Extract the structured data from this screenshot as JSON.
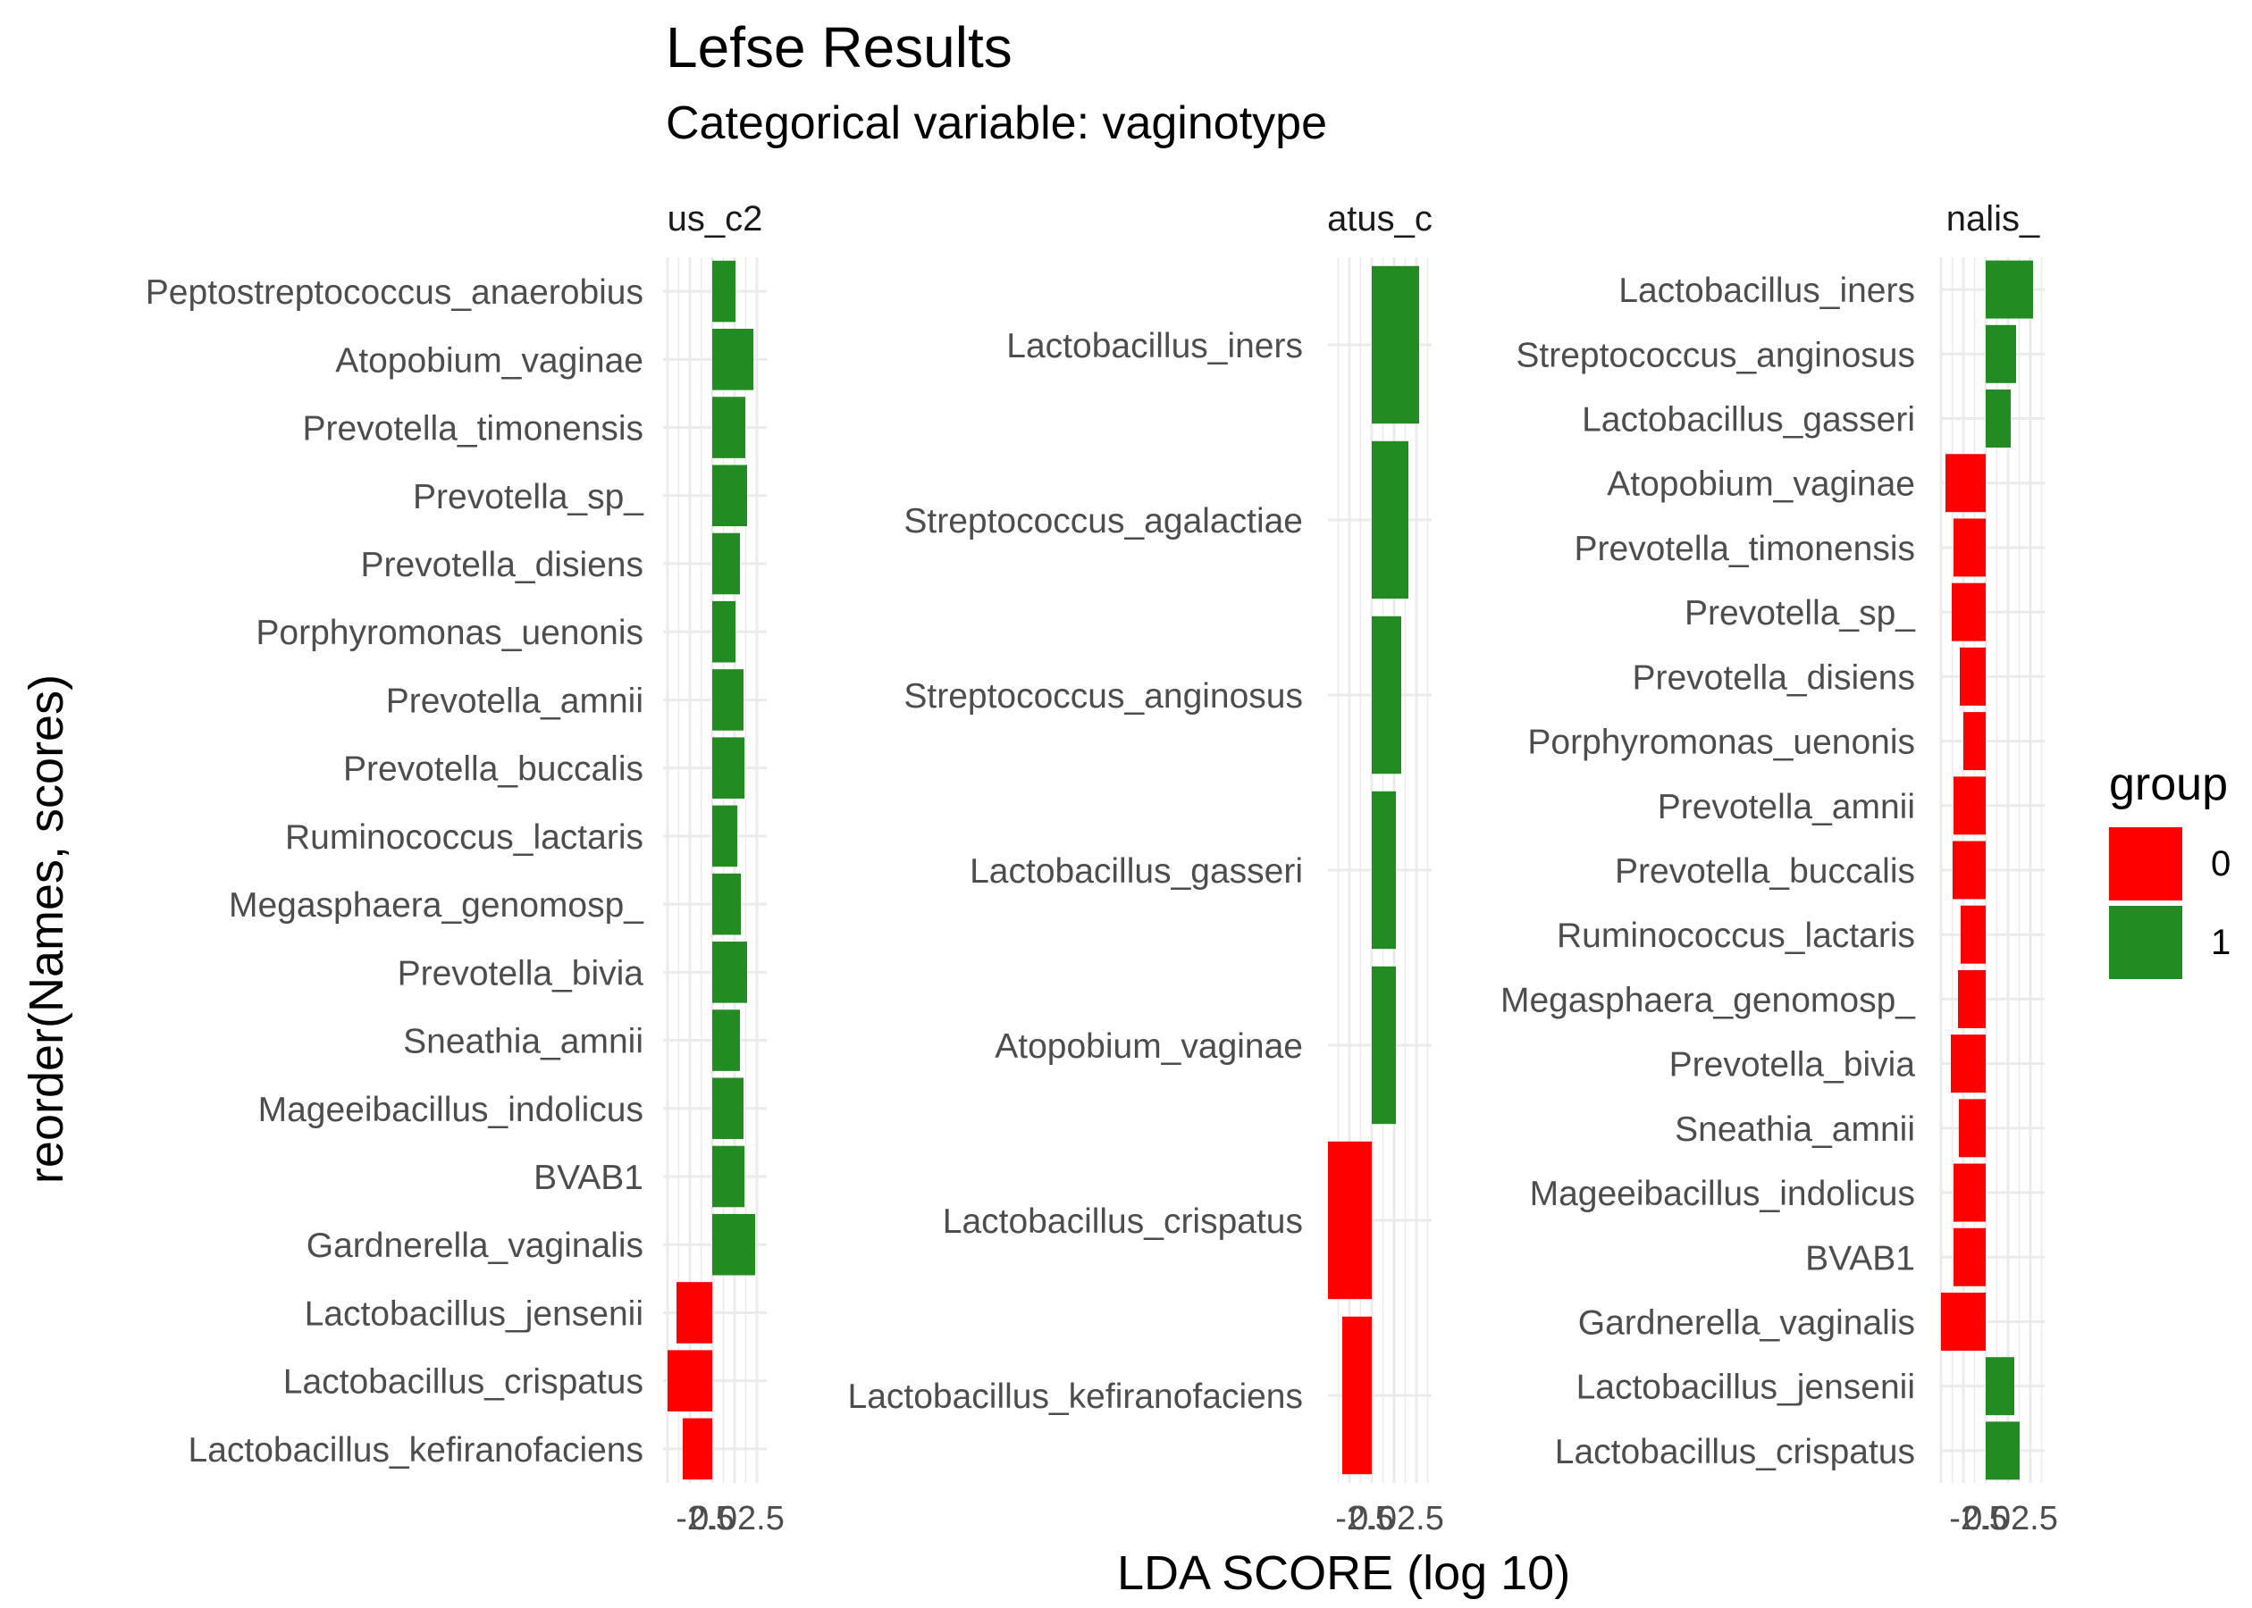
{
  "chart_data": {
    "type": "bar",
    "orientation": "horizontal",
    "title": "Lefse Results",
    "subtitle": "Categorical variable: vaginotype",
    "xlabel": "LDA SCORE (log 10)",
    "ylabel": "reorder(Names, scores)",
    "legend": {
      "title": "group",
      "placement": "right",
      "entries": [
        {
          "label": "0",
          "color": "#ff0000"
        },
        {
          "label": "1",
          "color": "#228b22"
        }
      ]
    },
    "grid": true,
    "tick_labels_text": "-2.5",
    "tick_labels_overlap": "-2.50.02.5",
    "panels": [
      {
        "strip_text": "us_c2",
        "categories": [
          "Peptostreptococcus_anaerobius",
          "Atopobium_vaginae",
          "Prevotella_timonensis",
          "Prevotella_sp_",
          "Prevotella_disiens",
          "Porphyromonas_uenonis",
          "Prevotella_amnii",
          "Prevotella_buccalis",
          "Ruminococcus_lactaris",
          "Megasphaera_genomosp_",
          "Prevotella_bivia",
          "Sneathia_amnii",
          "Mageeibacillus_indolicus",
          "BVAB1",
          "Gardnerella_vaginalis",
          "Lactobacillus_jensenii",
          "Lactobacillus_crispatus",
          "Lactobacillus_kefiranofaciens"
        ],
        "values": [
          2.6,
          4.6,
          3.7,
          3.9,
          3.1,
          2.6,
          3.5,
          3.6,
          2.8,
          3.2,
          3.9,
          3.1,
          3.5,
          3.6,
          4.8,
          -4.0,
          -5.0,
          -3.3
        ],
        "groups": [
          "1",
          "1",
          "1",
          "1",
          "1",
          "1",
          "1",
          "1",
          "1",
          "1",
          "1",
          "1",
          "1",
          "1",
          "1",
          "0",
          "0",
          "0"
        ]
      },
      {
        "strip_text": "atus_c",
        "categories": [
          "Lactobacillus_iners",
          "Streptococcus_agalactiae",
          "Streptococcus_anginosus",
          "Lactobacillus_gasseri",
          "Atopobium_vaginae",
          "Lactobacillus_crispatus",
          "Lactobacillus_kefiranofaciens"
        ],
        "values": [
          5.3,
          4.1,
          3.3,
          2.7,
          2.7,
          -5.1,
          -3.3
        ],
        "groups": [
          "1",
          "1",
          "1",
          "1",
          "1",
          "0",
          "0"
        ]
      },
      {
        "strip_text": "nalis_",
        "categories": [
          "Lactobacillus_iners",
          "Streptococcus_anginosus",
          "Lactobacillus_gasseri",
          "Atopobium_vaginae",
          "Prevotella_timonensis",
          "Prevotella_sp_",
          "Prevotella_disiens",
          "Porphyromonas_uenonis",
          "Prevotella_amnii",
          "Prevotella_buccalis",
          "Ruminococcus_lactaris",
          "Megasphaera_genomosp_",
          "Prevotella_bivia",
          "Sneathia_amnii",
          "Mageeibacillus_indolicus",
          "BVAB1",
          "Gardnerella_vaginalis",
          "Lactobacillus_jensenii",
          "Lactobacillus_crispatus"
        ],
        "values": [
          5.3,
          3.4,
          2.8,
          -4.5,
          -3.6,
          -3.8,
          -2.9,
          -2.5,
          -3.6,
          -3.7,
          -2.8,
          -3.1,
          -3.9,
          -3.0,
          -3.6,
          -3.6,
          -5.0,
          3.2,
          3.8
        ],
        "groups": [
          "1",
          "1",
          "1",
          "0",
          "0",
          "0",
          "0",
          "0",
          "0",
          "0",
          "0",
          "0",
          "0",
          "0",
          "0",
          "0",
          "0",
          "1",
          "1"
        ]
      }
    ]
  }
}
